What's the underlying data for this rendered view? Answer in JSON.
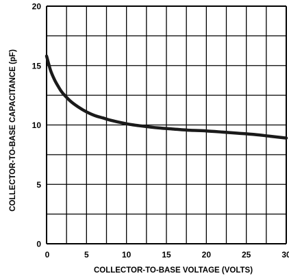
{
  "chart_data": {
    "type": "line",
    "xlabel": "COLLECTOR-TO-BASE VOLTAGE (VOLTS)",
    "ylabel": "COLLECTOR-TO-BASE CAPACITANCE (pF)",
    "xlim": [
      0,
      30
    ],
    "ylim": [
      0,
      20
    ],
    "x_ticks": [
      0,
      5,
      10,
      15,
      20,
      25,
      30
    ],
    "x_tick_labels": [
      "0",
      "5",
      "10",
      "15",
      "20",
      "25",
      "30"
    ],
    "y_ticks": [
      0,
      5,
      10,
      15,
      20
    ],
    "y_tick_labels": [
      "0",
      "5",
      "10",
      "15",
      "20"
    ],
    "grid": true,
    "series": [
      {
        "x": [
          0,
          0.5,
          1,
          1.5,
          2,
          3,
          4,
          5,
          6,
          7,
          8,
          10,
          12,
          14,
          16,
          18,
          20,
          22,
          24,
          26,
          28,
          30
        ],
        "y": [
          15.8,
          14.6,
          13.8,
          13.2,
          12.7,
          12.0,
          11.5,
          11.1,
          10.8,
          10.6,
          10.4,
          10.1,
          9.9,
          9.75,
          9.65,
          9.55,
          9.5,
          9.4,
          9.3,
          9.2,
          9.05,
          8.9
        ]
      }
    ]
  }
}
